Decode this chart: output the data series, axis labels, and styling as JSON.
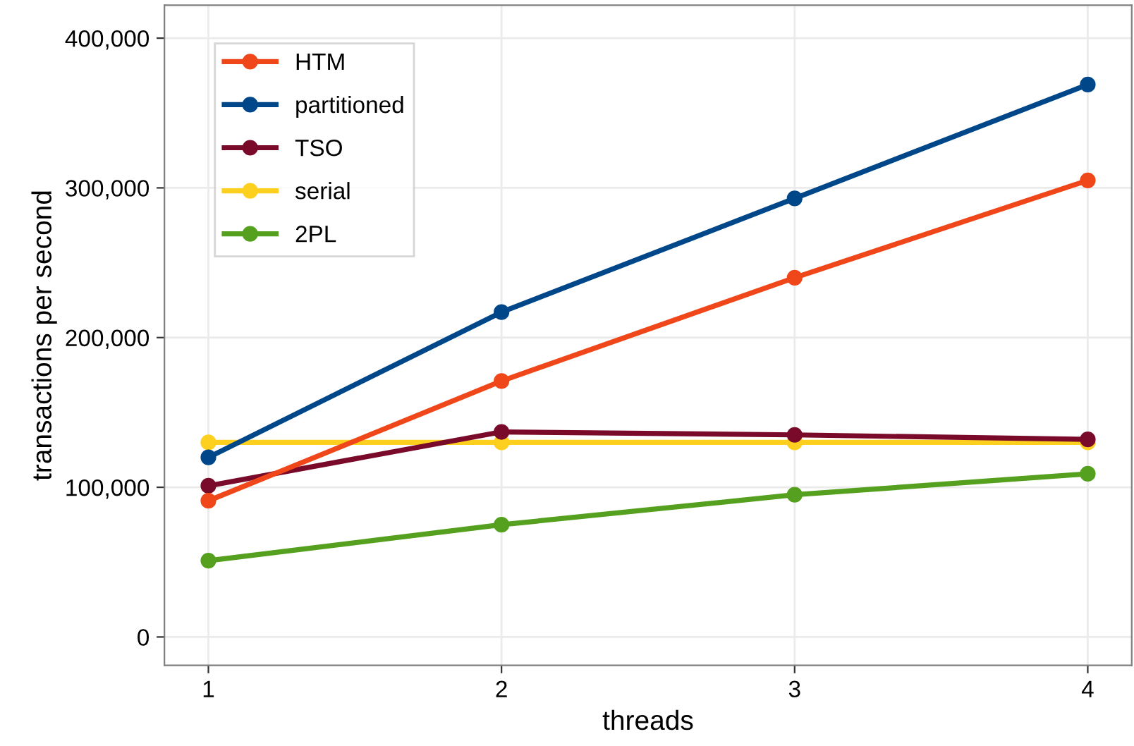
{
  "chart_data": {
    "type": "line",
    "xlabel": "threads",
    "ylabel": "transactions per second",
    "x": [
      1,
      2,
      3,
      4
    ],
    "series": [
      {
        "name": "HTM",
        "color": "#f0471a",
        "values": [
          91000,
          171000,
          240000,
          305000
        ]
      },
      {
        "name": "partitioned",
        "color": "#00478a",
        "values": [
          120000,
          217000,
          293000,
          369000
        ]
      },
      {
        "name": "TSO",
        "color": "#7a0a2a",
        "values": [
          101000,
          137000,
          135000,
          132000
        ]
      },
      {
        "name": "serial",
        "color": "#fdd020",
        "values": [
          130000,
          130000,
          130000,
          130000
        ]
      },
      {
        "name": "2PL",
        "color": "#55a01e",
        "values": [
          51000,
          75000,
          95000,
          109000
        ]
      }
    ],
    "xlim": [
      0.85,
      4.15
    ],
    "xticks": [
      1,
      2,
      3,
      4
    ],
    "ylim": [
      -19000,
      422000
    ],
    "yticks": [
      0,
      {
        "value": 100000,
        "label": "100,000"
      },
      {
        "value": 200000,
        "label": "200,000"
      },
      {
        "value": 300000,
        "label": "300,000"
      },
      {
        "value": 400000,
        "label": "400,000"
      }
    ],
    "grid": true,
    "legend": "top left",
    "marker": "circle",
    "line_style": "solid"
  }
}
